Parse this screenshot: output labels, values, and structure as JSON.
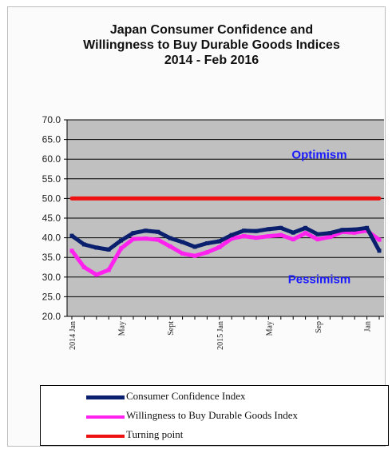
{
  "chart_data": {
    "type": "line",
    "title": [
      "Japan Consumer Confidence and",
      "Willingness to Buy Durable Goods Indices",
      "2014 - Feb  2016"
    ],
    "xlabel": "",
    "ylabel": "",
    "ylim": [
      20,
      70
    ],
    "yticks": [
      "20.0",
      "25.0",
      "30.0",
      "35.0",
      "40.0",
      "45.0",
      "50.0",
      "55.0",
      "60.0",
      "65.0",
      "70.0"
    ],
    "grid": true,
    "x_tick_labels": [
      {
        "index": 0,
        "label": "2014 Jan"
      },
      {
        "index": 4,
        "label": "May"
      },
      {
        "index": 8,
        "label": "Sept"
      },
      {
        "index": 12,
        "label": "2015 Jan"
      },
      {
        "index": 16,
        "label": "May"
      },
      {
        "index": 20,
        "label": "Sep"
      },
      {
        "index": 24,
        "label": "Jan"
      }
    ],
    "x": [
      "2014-01",
      "2014-02",
      "2014-03",
      "2014-04",
      "2014-05",
      "2014-06",
      "2014-07",
      "2014-08",
      "2014-09",
      "2014-10",
      "2014-11",
      "2014-12",
      "2015-01",
      "2015-02",
      "2015-03",
      "2015-04",
      "2015-05",
      "2015-06",
      "2015-07",
      "2015-08",
      "2015-09",
      "2015-10",
      "2015-11",
      "2015-12",
      "2016-01",
      "2016-02"
    ],
    "series": [
      {
        "name": "Consumer Confidence Index",
        "color": "#0a1f6e",
        "values": [
          40.5,
          38.3,
          37.5,
          37.0,
          39.3,
          41.2,
          41.8,
          41.5,
          39.9,
          38.9,
          37.7,
          38.6,
          39.1,
          40.7,
          41.8,
          41.7,
          42.2,
          42.5,
          41.3,
          42.5,
          40.9,
          41.2,
          42.0,
          42.1,
          42.5,
          36.7
        ]
      },
      {
        "name": "Willingness to Buy Durable Goods Index",
        "color": "#ff22ee",
        "values": [
          36.7,
          32.5,
          30.6,
          31.8,
          37.3,
          39.7,
          39.8,
          39.5,
          37.8,
          36.0,
          35.4,
          36.3,
          37.6,
          39.8,
          40.4,
          40.0,
          40.4,
          40.7,
          39.6,
          41.2,
          39.6,
          40.2,
          41.5,
          41.3,
          41.8,
          39.5
        ]
      },
      {
        "name": "Turning point",
        "color": "#ee1111",
        "values": [
          50,
          50,
          50,
          50,
          50,
          50,
          50,
          50,
          50,
          50,
          50,
          50,
          50,
          50,
          50,
          50,
          50,
          50,
          50,
          50,
          50,
          50,
          50,
          50,
          50,
          50
        ]
      }
    ],
    "annotations": [
      {
        "text": "Optimism",
        "x_index": 20,
        "y": 61.2,
        "color": "#1a1aff"
      },
      {
        "text": "Pessimism",
        "x_index": 20,
        "y": 29.5,
        "color": "#1a1aff"
      }
    ]
  }
}
